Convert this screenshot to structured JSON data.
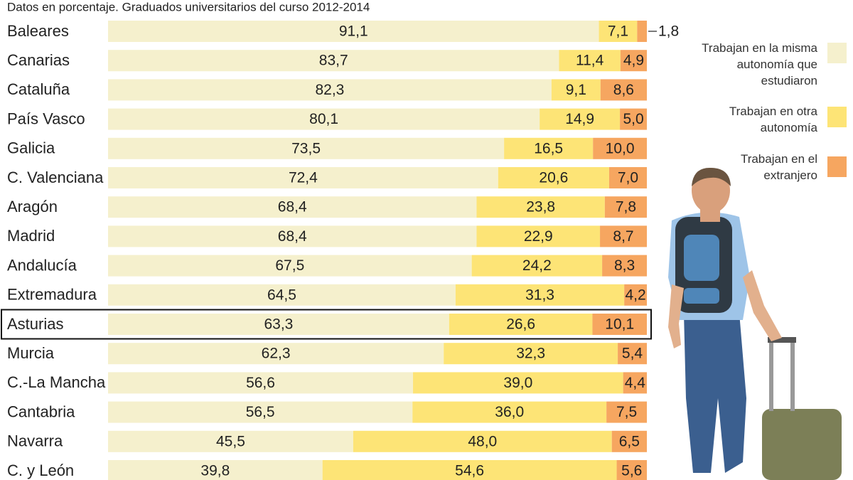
{
  "chart_data": {
    "type": "stacked-bar-horizontal",
    "subtitle": "Datos en porcentaje. Graduados universitarios del curso 2012-2014",
    "categories": [
      "Baleares",
      "Canarias",
      "Cataluña",
      "País Vasco",
      "Galicia",
      "C. Valenciana",
      "Aragón",
      "Madrid",
      "Andalucía",
      "Extremadura",
      "Asturias",
      "Murcia",
      "C.-La Mancha",
      "Cantabria",
      "Navarra",
      "C. y León"
    ],
    "xlim": [
      0,
      100
    ],
    "highlight": 10,
    "series": [
      {
        "name": "Trabajan en la misma autonomía que estudiaron",
        "color": "#f5f0cd",
        "values": [
          91.1,
          83.7,
          82.3,
          80.1,
          73.5,
          72.4,
          68.4,
          68.4,
          67.5,
          64.5,
          63.3,
          62.3,
          56.6,
          56.5,
          45.5,
          39.8
        ],
        "value_labels": [
          "91,1",
          "83,7",
          "82,3",
          "80,1",
          "73,5",
          "72,4",
          "68,4",
          "68,4",
          "67,5",
          "64,5",
          "63,3",
          "62,3",
          "56,6",
          "56,5",
          "45,5",
          "39,8"
        ]
      },
      {
        "name": "Trabajan en otra autonomía",
        "color": "#fde476",
        "values": [
          7.1,
          11.4,
          9.1,
          14.9,
          16.5,
          20.6,
          23.8,
          22.9,
          24.2,
          31.3,
          26.6,
          32.3,
          39.0,
          36.0,
          48.0,
          54.6
        ],
        "value_labels": [
          "7,1",
          "11,4",
          "9,1",
          "14,9",
          "16,5",
          "20,6",
          "23,8",
          "22,9",
          "24,2",
          "31,3",
          "26,6",
          "32,3",
          "39,0",
          "36,0",
          "48,0",
          "54,6"
        ]
      },
      {
        "name": "Trabajan en el extranjero",
        "color": "#f6a660",
        "values": [
          1.8,
          4.9,
          8.6,
          5.0,
          10.0,
          7.0,
          7.8,
          8.7,
          8.3,
          4.2,
          10.1,
          5.4,
          4.4,
          7.5,
          6.5,
          5.6
        ],
        "value_labels": [
          "1,8",
          "4,9",
          "8,6",
          "5,0",
          "10,0",
          "7,0",
          "7,8",
          "8,7",
          "8,3",
          "4,2",
          "10,1",
          "5,4",
          "4,4",
          "7,5",
          "6,5",
          "5,6"
        ]
      }
    ]
  }
}
